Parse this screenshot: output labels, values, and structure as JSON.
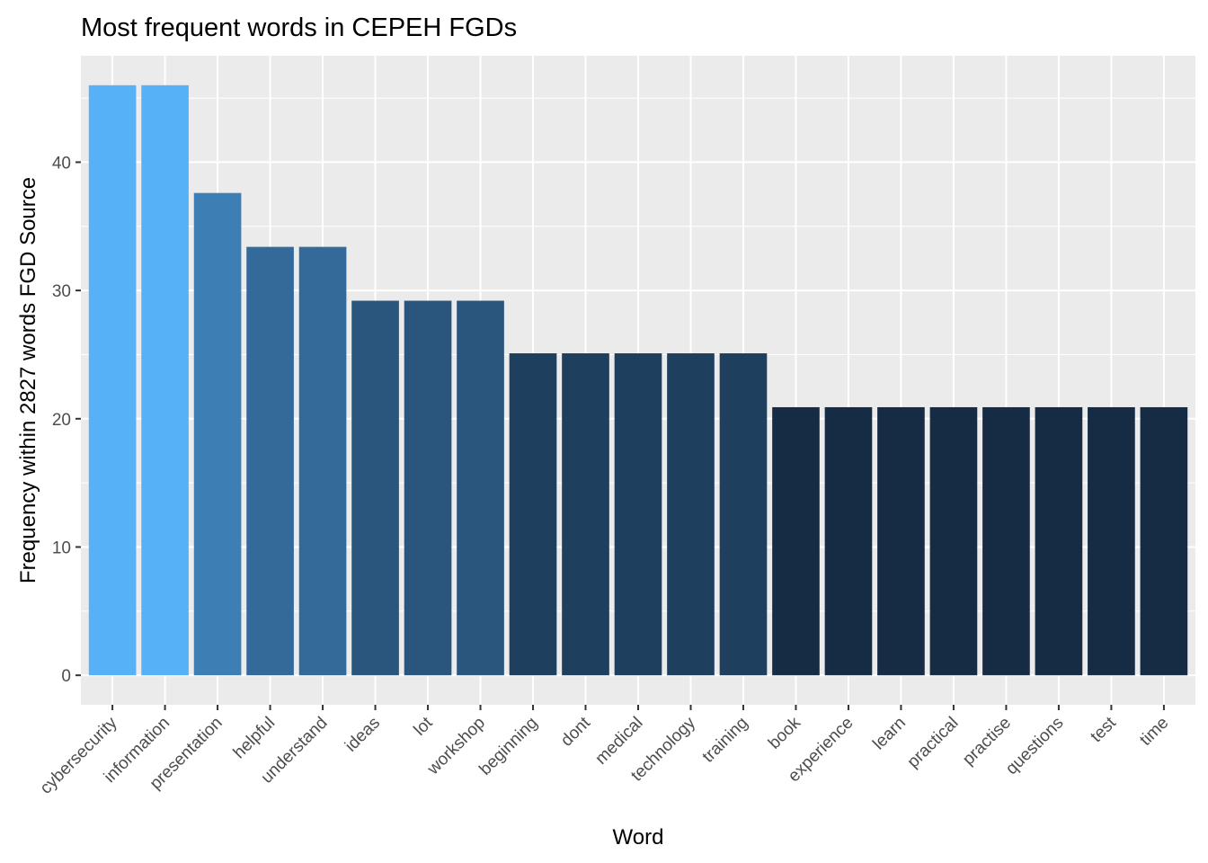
{
  "chart_data": {
    "type": "bar",
    "title": "Most frequent words in CEPEH FGDs",
    "xlabel": "Word",
    "ylabel": "Frequency within 2827 words FGD Source",
    "categories": [
      "cybersecurity",
      "information",
      "presentation",
      "helpful",
      "understand",
      "ideas",
      "lot",
      "workshop",
      "beginning",
      "dont",
      "medical",
      "technology",
      "training",
      "book",
      "experience",
      "learn",
      "practical",
      "practise",
      "questions",
      "test",
      "time"
    ],
    "values": [
      46,
      46,
      37.6,
      33.4,
      33.4,
      29.2,
      29.2,
      29.2,
      25.1,
      25.1,
      25.1,
      25.1,
      25.1,
      20.9,
      20.9,
      20.9,
      20.9,
      20.9,
      20.9,
      20.9,
      20.9
    ],
    "ylim": [
      -2.3,
      48.3
    ],
    "yticks": [
      0,
      10,
      20,
      30,
      40
    ],
    "ytick_labels": [
      "0",
      "10",
      "20",
      "30",
      "40"
    ],
    "grid": true,
    "legend": "none",
    "bar_colors": [
      "#56b1f7",
      "#56b1f7",
      "#3d7fb5",
      "#336a99",
      "#336a99",
      "#2a557d",
      "#2a557d",
      "#2a557d",
      "#1f3f5f",
      "#1f3f5f",
      "#1f3f5f",
      "#1f3f5f",
      "#1f3f5f",
      "#162c45",
      "#162c45",
      "#162c45",
      "#162c45",
      "#162c45",
      "#162c45",
      "#162c45",
      "#162c45"
    ],
    "panel_background": "#ebebeb",
    "grid_color": "#ffffff"
  }
}
